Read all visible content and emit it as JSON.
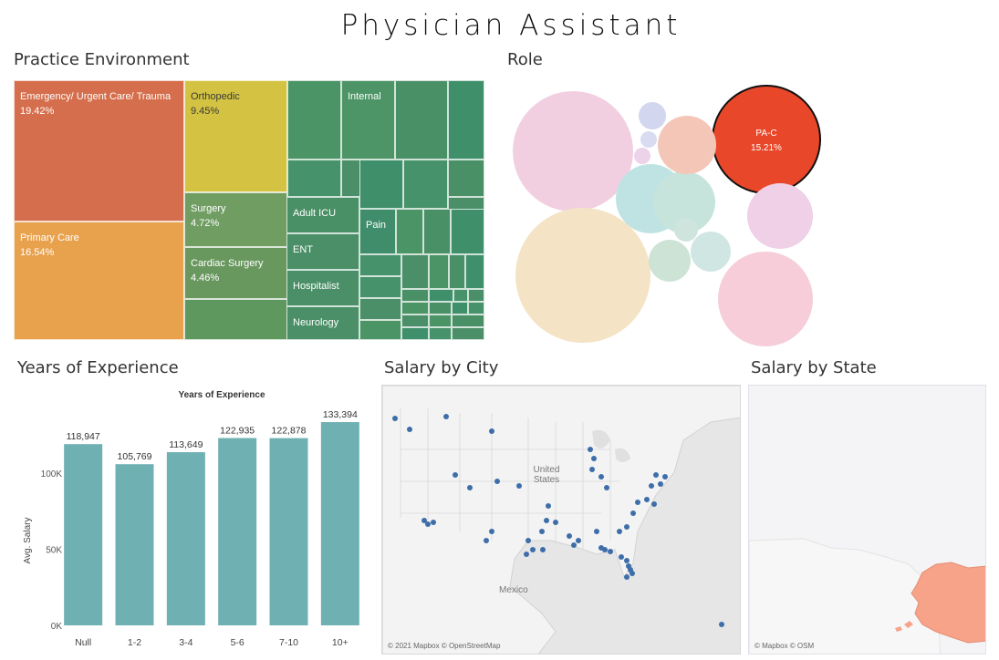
{
  "dashboard": {
    "title": "Physician Assistant"
  },
  "practice": {
    "title": "Practice Environment",
    "tiles": [
      {
        "id": "emergency",
        "name": "Emergency/ Urgent Care/ Trauma",
        "pct": "19.42%",
        "color": "#d46e4c"
      },
      {
        "id": "primary",
        "name": "Primary Care",
        "pct": "16.54%",
        "color": "#e8a24e"
      },
      {
        "id": "ortho",
        "name": "Orthopedic",
        "pct": "9.45%",
        "color": "#d4c342"
      },
      {
        "id": "surgery",
        "name": "Surgery",
        "pct": "4.72%",
        "color": "#6f9d62"
      },
      {
        "id": "cardiac",
        "name": "Cardiac Surgery",
        "pct": "4.46%",
        "color": "#69985f"
      },
      {
        "id": "internal",
        "name": "Internal",
        "pct": "",
        "color": "#4d9466"
      },
      {
        "id": "adulticu",
        "name": "Adult ICU",
        "pct": "",
        "color": "#4a9066"
      },
      {
        "id": "ent",
        "name": "ENT",
        "pct": "",
        "color": "#4a8f67"
      },
      {
        "id": "hospitalist",
        "name": "Hospitalist",
        "pct": "",
        "color": "#4a8f67"
      },
      {
        "id": "neurology",
        "name": "Neurology",
        "pct": "",
        "color": "#4a8f67"
      },
      {
        "id": "pain",
        "name": "Pain",
        "pct": "",
        "color": "#3f8d6a"
      }
    ]
  },
  "role": {
    "title": "Role",
    "bubbles": [
      {
        "id": "pac",
        "name": "PA-C",
        "pct": "15.21%",
        "color": "#e8472a",
        "highlight": true
      },
      {
        "id": "b1",
        "name": "",
        "pct": "",
        "color": "#f1cfe0"
      },
      {
        "id": "b2",
        "name": "",
        "pct": "",
        "color": "#f4e3c4"
      },
      {
        "id": "b3",
        "name": "",
        "pct": "",
        "color": "#bfe3e3"
      },
      {
        "id": "b4",
        "name": "",
        "pct": "",
        "color": "#c7e4dc"
      },
      {
        "id": "b5",
        "name": "",
        "pct": "",
        "color": "#f4c6b8"
      },
      {
        "id": "b6",
        "name": "",
        "pct": "",
        "color": "#efd0e6"
      },
      {
        "id": "b7",
        "name": "",
        "pct": "",
        "color": "#f6cdd9"
      },
      {
        "id": "b8",
        "name": "",
        "pct": "",
        "color": "#cde3d5"
      },
      {
        "id": "b9",
        "name": "",
        "pct": "",
        "color": "#d0e6e2"
      },
      {
        "id": "b10",
        "name": "",
        "pct": "",
        "color": "#d2d6ee"
      },
      {
        "id": "b11",
        "name": "",
        "pct": "",
        "color": "#d9dbf0"
      },
      {
        "id": "b12",
        "name": "",
        "pct": "",
        "color": "#ecd3ea"
      },
      {
        "id": "b13",
        "name": "",
        "pct": "",
        "color": "#cfe4dc"
      }
    ]
  },
  "experience": {
    "title": "Years of Experience",
    "chart_data": {
      "type": "bar",
      "title": "Years of Experience",
      "xlabel": "",
      "ylabel": "Avg. Salary",
      "categories": [
        "Null",
        "1-2",
        "3-4",
        "5-6",
        "7-10",
        "10+"
      ],
      "values": [
        118947,
        105769,
        113649,
        122935,
        122878,
        133394
      ],
      "value_labels": [
        "118,947",
        "105,769",
        "113,649",
        "122,935",
        "122,878",
        "133,394"
      ],
      "yticks": [
        {
          "value": 0,
          "label": "0K"
        },
        {
          "value": 50000,
          "label": "50K"
        },
        {
          "value": 100000,
          "label": "100K"
        }
      ],
      "ylim": [
        0,
        140000
      ],
      "color": "#6fb0b3"
    }
  },
  "city": {
    "title": "Salary by City",
    "country_label": "United States",
    "mexico_label": "Mexico",
    "attribution": "© 2021 Mapbox © OpenStreetMap",
    "dot_color": "#3e6ea9"
  },
  "state": {
    "title": "Salary by State",
    "attribution": "© Mapbox © OSM",
    "alaska_color": "#f6a38a"
  }
}
